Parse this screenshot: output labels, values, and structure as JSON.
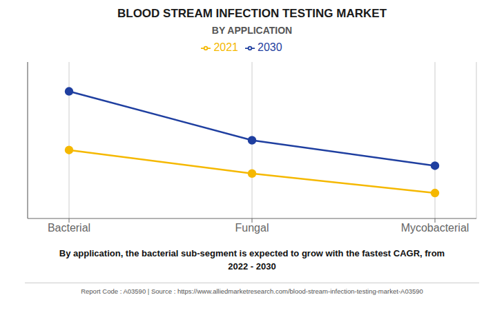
{
  "chart_data": {
    "type": "line",
    "title": "BLOOD STREAM INFECTION TESTING MARKET",
    "subtitle": "BY APPLICATION",
    "categories": [
      "Bacterial",
      "Fungal",
      "Mycobacterial"
    ],
    "series": [
      {
        "name": "2021",
        "color": "#F5B800",
        "values": [
          4.0,
          2.8,
          1.8
        ],
        "marker": "circle"
      },
      {
        "name": "2030",
        "color": "#1F3FA0",
        "values": [
          7.0,
          4.5,
          3.2
        ],
        "marker": "circle"
      }
    ],
    "ylim": [
      0.5,
      8.5
    ],
    "yticks": [],
    "grid": "x",
    "legend": "top",
    "tick_labels": "x",
    "annotations": [
      "By application, the bacterial sub-segment is expected to grow with the fastest CAGR, from\n2022 - 2030",
      "Report Code : A03590  |  Source : https://www.alliedmarketresearch.com/blood-stream-infection-testing-market-A03590"
    ]
  }
}
